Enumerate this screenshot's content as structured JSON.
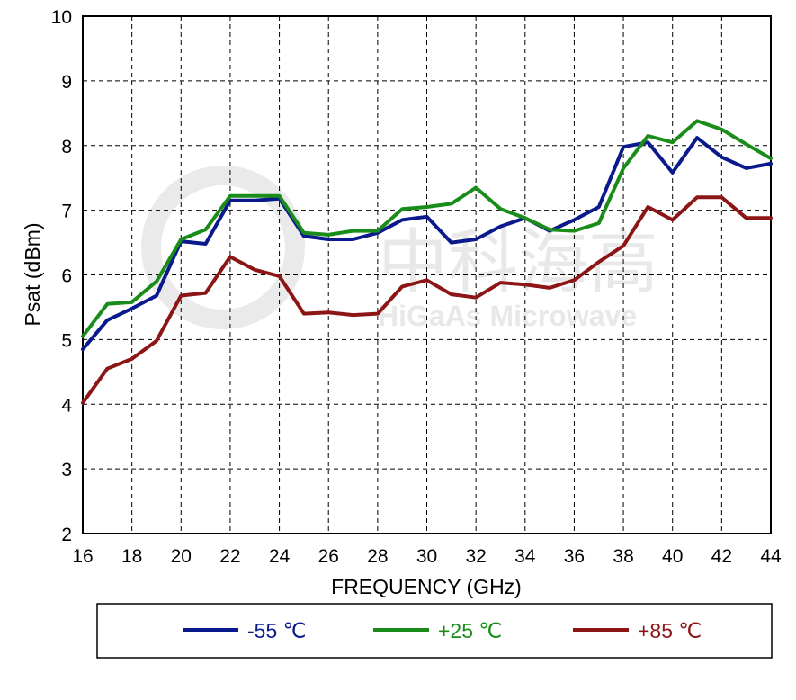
{
  "chart_data": {
    "type": "line",
    "xlabel": "FREQUENCY (GHz)",
    "ylabel": "Psat (dBm)",
    "xlim": [
      16,
      44
    ],
    "ylim": [
      2,
      10
    ],
    "x_ticks": [
      16,
      18,
      20,
      22,
      24,
      26,
      28,
      30,
      32,
      34,
      36,
      38,
      40,
      42,
      44
    ],
    "y_ticks": [
      2,
      3,
      4,
      5,
      6,
      7,
      8,
      9,
      10
    ],
    "grid": true,
    "legend_position": "bottom",
    "x": [
      16,
      17,
      18,
      19,
      20,
      21,
      22,
      23,
      24,
      25,
      26,
      27,
      28,
      29,
      30,
      31,
      32,
      33,
      34,
      35,
      36,
      37,
      38,
      39,
      40,
      41,
      42,
      43,
      44
    ],
    "series": [
      {
        "name": "-55 ℃",
        "color": "#0a1a8c",
        "values": [
          4.85,
          5.3,
          5.48,
          5.68,
          6.52,
          6.48,
          7.15,
          7.15,
          7.18,
          6.6,
          6.55,
          6.55,
          6.65,
          6.85,
          6.9,
          6.5,
          6.55,
          6.75,
          6.88,
          6.68,
          6.85,
          7.05,
          7.98,
          8.05,
          7.58,
          8.12,
          7.82,
          7.65,
          7.72
        ]
      },
      {
        "name": "+25 ℃",
        "color": "#1a8c1a",
        "values": [
          5.05,
          5.55,
          5.58,
          5.9,
          6.55,
          6.7,
          7.22,
          7.22,
          7.22,
          6.65,
          6.62,
          6.68,
          6.68,
          7.02,
          7.05,
          7.1,
          7.35,
          7.02,
          6.88,
          6.7,
          6.68,
          6.8,
          7.65,
          8.15,
          8.05,
          8.38,
          8.25,
          8.02,
          7.8
        ]
      },
      {
        "name": "+85 ℃",
        "color": "#8c1616",
        "values": [
          4.02,
          4.55,
          4.7,
          4.98,
          5.68,
          5.72,
          6.28,
          6.08,
          5.98,
          5.4,
          5.42,
          5.38,
          5.4,
          5.82,
          5.92,
          5.7,
          5.65,
          5.88,
          5.85,
          5.8,
          5.92,
          6.2,
          6.45,
          7.05,
          6.85,
          7.2,
          7.2,
          6.88,
          6.88
        ]
      }
    ]
  },
  "watermark": {
    "cn_text": "中科海高",
    "en_text": "HiGaAs Microwave"
  }
}
